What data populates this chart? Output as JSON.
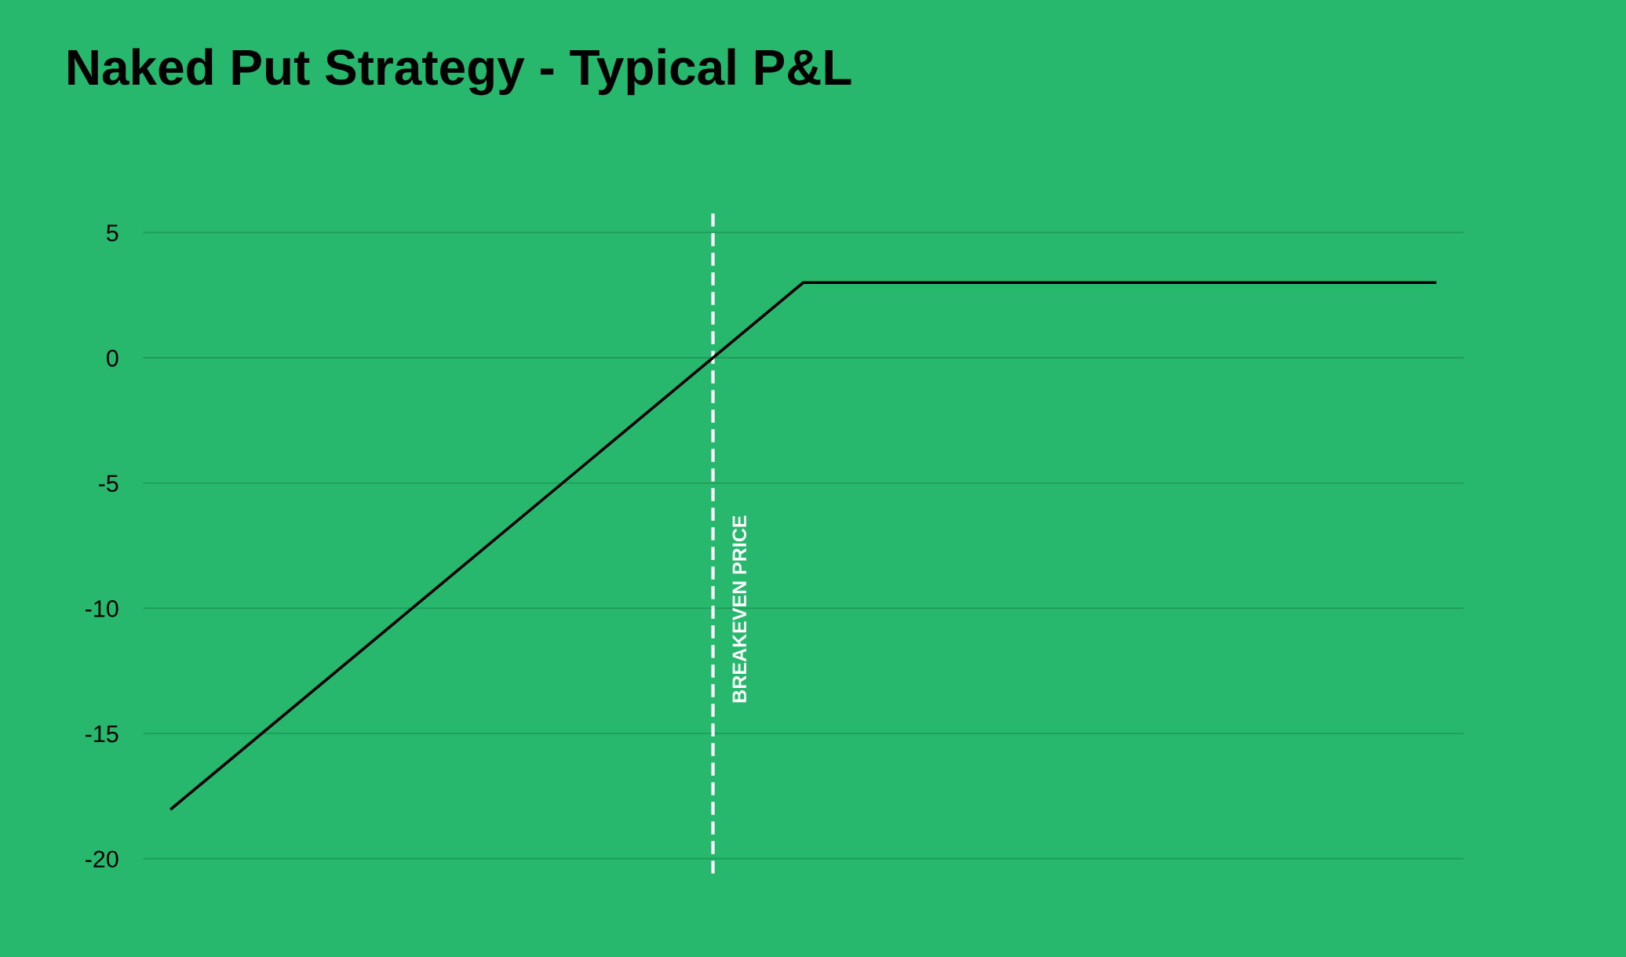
{
  "chart_data": {
    "type": "line",
    "title": "Naked Put Strategy - Typical P&L",
    "categories": [
      null,
      null,
      null
    ],
    "series": [
      {
        "color": "#000000",
        "values": [
          -18,
          3,
          3
        ]
      }
    ],
    "ylim": [
      -20.6,
      5.8
    ],
    "yticks": [
      5,
      0,
      -5,
      -10,
      -15,
      -20
    ],
    "grid": "y",
    "tick_labels": "y",
    "marker": "none",
    "line_style": "solid",
    "legend": false,
    "annotations": [
      "BREAKEVEN PRICE"
    ]
  }
}
